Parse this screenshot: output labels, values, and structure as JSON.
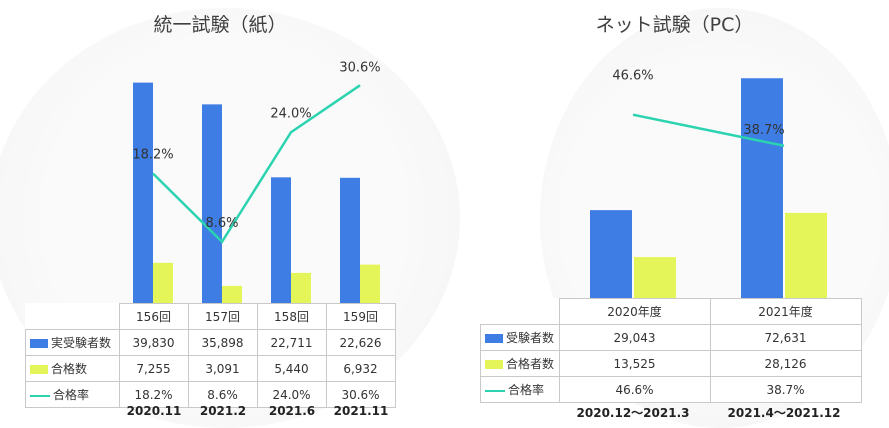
{
  "colors": {
    "blue": "#3d7de4",
    "yellow": "#e4f55a",
    "teal": "#2bd3b0"
  },
  "chart_data": [
    {
      "type": "bar",
      "title": "統一試験（紙）",
      "categories": [
        "156回",
        "157回",
        "158回",
        "159回"
      ],
      "periods": [
        "2020.11",
        "2021.2",
        "2021.6",
        "2021.11"
      ],
      "ylim": [
        0,
        45000
      ],
      "rate_ylim": [
        0,
        35
      ],
      "series": [
        {
          "name": "実受験者数",
          "kind": "bar",
          "color": "blue",
          "values": [
            39830,
            35898,
            22711,
            22626
          ],
          "labels": [
            "39,830",
            "35,898",
            "22,711",
            "22,626"
          ]
        },
        {
          "name": "合格数",
          "kind": "bar",
          "color": "yellow",
          "values": [
            7255,
            3091,
            5440,
            6932
          ],
          "labels": [
            "7,255",
            "3,091",
            "5,440",
            "6,932"
          ]
        },
        {
          "name": "合格率",
          "kind": "line",
          "color": "teal",
          "values": [
            18.2,
            8.6,
            24.0,
            30.6
          ],
          "labels": [
            "18.2%",
            "8.6%",
            "24.0%",
            "30.6%"
          ]
        }
      ]
    },
    {
      "type": "bar",
      "title": "ネット試験（PC）",
      "categories": [
        "2020年度",
        "2021年度"
      ],
      "periods": [
        "2020.12～2021.3",
        "2021.4～2021.12"
      ],
      "ylim": [
        0,
        78000
      ],
      "rate_ylim": [
        0,
        60
      ],
      "series": [
        {
          "name": "受験者数",
          "kind": "bar",
          "color": "blue",
          "values": [
            29043,
            72631
          ],
          "labels": [
            "29,043",
            "72,631"
          ]
        },
        {
          "name": "合格者数",
          "kind": "bar",
          "color": "yellow",
          "values": [
            13525,
            28126
          ],
          "labels": [
            "13,525",
            "28,126"
          ]
        },
        {
          "name": "合格率",
          "kind": "line",
          "color": "teal",
          "values": [
            46.6,
            38.7
          ],
          "labels": [
            "46.6%",
            "38.7%"
          ]
        }
      ]
    }
  ]
}
